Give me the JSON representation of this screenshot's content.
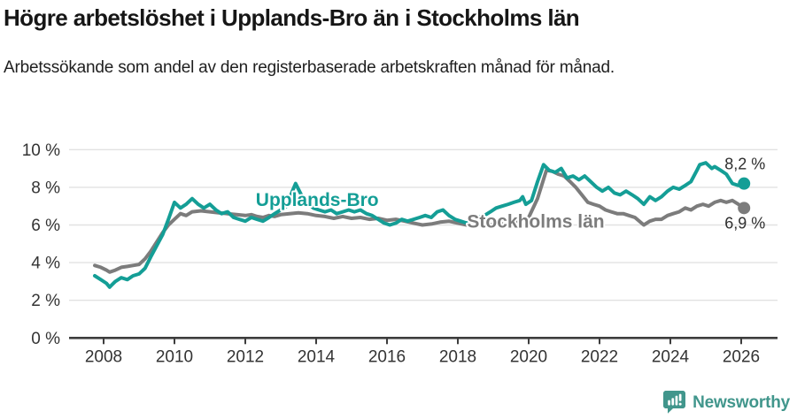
{
  "header": {
    "title": "Högre arbetslöshet i Upplands-Bro än i Stockholms län",
    "subtitle": "Arbetssökande som andel av den registerbaserade arbetskraften månad för månad."
  },
  "footer": {
    "brand": "Newsworthy",
    "brand_color": "#41968c"
  },
  "chart_data": {
    "type": "line",
    "unit": "%",
    "grid": true,
    "legend_position": "inline-labels",
    "xlim": [
      2007.1,
      2027.0
    ],
    "ylim": [
      0,
      10
    ],
    "grid_color": "#e2e2e2",
    "axis_color": "#3d3d3d",
    "tick_label_color": "#333333",
    "end_label_color": "#2e2e2e",
    "y_ticks": [
      {
        "value": 0,
        "label": "0 %"
      },
      {
        "value": 2,
        "label": "2 %"
      },
      {
        "value": 4,
        "label": "4 %"
      },
      {
        "value": 6,
        "label": "6 %"
      },
      {
        "value": 8,
        "label": "8 %"
      },
      {
        "value": 10,
        "label": "10 %"
      }
    ],
    "x_ticks": [
      {
        "value": 2008,
        "label": "2008"
      },
      {
        "value": 2010,
        "label": "2010"
      },
      {
        "value": 2012,
        "label": "2012"
      },
      {
        "value": 2014,
        "label": "2014"
      },
      {
        "value": 2016,
        "label": "2016"
      },
      {
        "value": 2018,
        "label": "2018"
      },
      {
        "value": 2020,
        "label": "2020"
      },
      {
        "value": 2022,
        "label": "2022"
      },
      {
        "value": 2024,
        "label": "2024"
      },
      {
        "value": 2026,
        "label": "2026"
      }
    ],
    "series": [
      {
        "name": "Upplands-Bro",
        "color": "#149e96",
        "end_label": "8,2 %",
        "end_value": 8.2,
        "label_anchor": {
          "x": 2014.03,
          "y": 7.0
        },
        "points": [
          [
            2007.75,
            3.3
          ],
          [
            2007.92,
            3.1
          ],
          [
            2008.08,
            2.9
          ],
          [
            2008.17,
            2.7
          ],
          [
            2008.33,
            3.0
          ],
          [
            2008.5,
            3.2
          ],
          [
            2008.67,
            3.1
          ],
          [
            2008.83,
            3.3
          ],
          [
            2009.0,
            3.4
          ],
          [
            2009.17,
            3.7
          ],
          [
            2009.33,
            4.3
          ],
          [
            2009.5,
            4.9
          ],
          [
            2009.67,
            5.5
          ],
          [
            2009.83,
            6.3
          ],
          [
            2010.0,
            7.2
          ],
          [
            2010.17,
            6.9
          ],
          [
            2010.33,
            7.1
          ],
          [
            2010.5,
            7.4
          ],
          [
            2010.67,
            7.1
          ],
          [
            2010.83,
            6.9
          ],
          [
            2011.0,
            7.1
          ],
          [
            2011.17,
            6.8
          ],
          [
            2011.33,
            6.6
          ],
          [
            2011.5,
            6.7
          ],
          [
            2011.67,
            6.4
          ],
          [
            2011.83,
            6.3
          ],
          [
            2012.0,
            6.2
          ],
          [
            2012.17,
            6.4
          ],
          [
            2012.33,
            6.3
          ],
          [
            2012.5,
            6.2
          ],
          [
            2012.67,
            6.4
          ],
          [
            2012.83,
            6.6
          ],
          [
            2013.0,
            6.8
          ],
          [
            2013.17,
            7.0
          ],
          [
            2013.33,
            7.8
          ],
          [
            2013.42,
            8.2
          ],
          [
            2013.58,
            7.6
          ],
          [
            2013.75,
            7.2
          ],
          [
            2013.92,
            6.9
          ],
          [
            2014.08,
            6.8
          ],
          [
            2014.25,
            6.7
          ],
          [
            2014.42,
            6.8
          ],
          [
            2014.58,
            6.6
          ],
          [
            2014.75,
            6.7
          ],
          [
            2014.92,
            6.8
          ],
          [
            2015.08,
            6.7
          ],
          [
            2015.25,
            6.8
          ],
          [
            2015.42,
            6.6
          ],
          [
            2015.58,
            6.5
          ],
          [
            2015.75,
            6.3
          ],
          [
            2015.92,
            6.1
          ],
          [
            2016.08,
            6.0
          ],
          [
            2016.25,
            6.1
          ],
          [
            2016.42,
            6.3
          ],
          [
            2016.58,
            6.2
          ],
          [
            2016.75,
            6.3
          ],
          [
            2016.92,
            6.4
          ],
          [
            2017.08,
            6.5
          ],
          [
            2017.25,
            6.4
          ],
          [
            2017.42,
            6.7
          ],
          [
            2017.58,
            6.8
          ],
          [
            2017.75,
            6.5
          ],
          [
            2017.92,
            6.3
          ],
          [
            2018.08,
            6.2
          ],
          [
            2018.25,
            6.1
          ],
          [
            2018.42,
            6.2
          ],
          [
            2018.58,
            6.4
          ],
          [
            2018.75,
            6.5
          ],
          [
            2018.92,
            6.7
          ],
          [
            2019.08,
            6.9
          ],
          [
            2019.25,
            7.0
          ],
          [
            2019.42,
            7.1
          ],
          [
            2019.58,
            7.2
          ],
          [
            2019.75,
            7.3
          ],
          [
            2019.83,
            7.5
          ],
          [
            2019.92,
            7.1
          ],
          [
            2020.08,
            7.3
          ],
          [
            2020.25,
            8.3
          ],
          [
            2020.42,
            9.2
          ],
          [
            2020.58,
            8.9
          ],
          [
            2020.75,
            8.8
          ],
          [
            2020.92,
            9.0
          ],
          [
            2021.08,
            8.5
          ],
          [
            2021.25,
            8.6
          ],
          [
            2021.42,
            8.4
          ],
          [
            2021.58,
            8.6
          ],
          [
            2021.75,
            8.3
          ],
          [
            2021.92,
            8.0
          ],
          [
            2022.08,
            7.8
          ],
          [
            2022.25,
            8.0
          ],
          [
            2022.42,
            7.7
          ],
          [
            2022.58,
            7.6
          ],
          [
            2022.75,
            7.8
          ],
          [
            2022.92,
            7.6
          ],
          [
            2023.08,
            7.4
          ],
          [
            2023.25,
            7.1
          ],
          [
            2023.42,
            7.5
          ],
          [
            2023.58,
            7.3
          ],
          [
            2023.75,
            7.5
          ],
          [
            2023.92,
            7.8
          ],
          [
            2024.08,
            8.0
          ],
          [
            2024.25,
            7.9
          ],
          [
            2024.42,
            8.1
          ],
          [
            2024.58,
            8.3
          ],
          [
            2024.75,
            8.9
          ],
          [
            2024.83,
            9.2
          ],
          [
            2025.0,
            9.3
          ],
          [
            2025.17,
            9.0
          ],
          [
            2025.25,
            9.1
          ],
          [
            2025.42,
            8.9
          ],
          [
            2025.58,
            8.7
          ],
          [
            2025.75,
            8.2
          ],
          [
            2025.92,
            8.1
          ],
          [
            2026.08,
            8.2
          ]
        ]
      },
      {
        "name": "Stockholms län",
        "color": "#7c7c7c",
        "end_label": "6,9 %",
        "end_value": 6.9,
        "label_anchor": {
          "x": 2020.2,
          "y": 5.85
        },
        "points": [
          [
            2007.75,
            3.85
          ],
          [
            2007.92,
            3.75
          ],
          [
            2008.08,
            3.6
          ],
          [
            2008.17,
            3.5
          ],
          [
            2008.33,
            3.6
          ],
          [
            2008.5,
            3.75
          ],
          [
            2008.67,
            3.8
          ],
          [
            2008.83,
            3.85
          ],
          [
            2009.0,
            3.9
          ],
          [
            2009.17,
            4.2
          ],
          [
            2009.33,
            4.6
          ],
          [
            2009.5,
            5.1
          ],
          [
            2009.67,
            5.6
          ],
          [
            2009.83,
            6.0
          ],
          [
            2010.0,
            6.3
          ],
          [
            2010.17,
            6.6
          ],
          [
            2010.33,
            6.5
          ],
          [
            2010.5,
            6.7
          ],
          [
            2010.75,
            6.75
          ],
          [
            2011.0,
            6.7
          ],
          [
            2011.25,
            6.65
          ],
          [
            2011.5,
            6.6
          ],
          [
            2011.75,
            6.55
          ],
          [
            2012.0,
            6.5
          ],
          [
            2012.17,
            6.55
          ],
          [
            2012.33,
            6.45
          ],
          [
            2012.5,
            6.4
          ],
          [
            2012.67,
            6.5
          ],
          [
            2012.83,
            6.45
          ],
          [
            2013.0,
            6.55
          ],
          [
            2013.25,
            6.6
          ],
          [
            2013.5,
            6.65
          ],
          [
            2013.75,
            6.6
          ],
          [
            2014.0,
            6.5
          ],
          [
            2014.25,
            6.45
          ],
          [
            2014.5,
            6.35
          ],
          [
            2014.75,
            6.45
          ],
          [
            2015.0,
            6.35
          ],
          [
            2015.25,
            6.4
          ],
          [
            2015.5,
            6.3
          ],
          [
            2015.75,
            6.35
          ],
          [
            2016.0,
            6.25
          ],
          [
            2016.25,
            6.3
          ],
          [
            2016.5,
            6.2
          ],
          [
            2016.75,
            6.1
          ],
          [
            2017.0,
            6.0
          ],
          [
            2017.25,
            6.05
          ],
          [
            2017.5,
            6.15
          ],
          [
            2017.75,
            6.2
          ],
          [
            2018.0,
            6.1
          ],
          [
            2018.25,
            6.0
          ],
          [
            2018.5,
            6.0
          ],
          [
            2018.75,
            6.05
          ],
          [
            2019.0,
            6.0
          ],
          [
            2019.25,
            6.05
          ],
          [
            2019.5,
            6.1
          ],
          [
            2019.75,
            6.2
          ],
          [
            2020.0,
            6.4
          ],
          [
            2020.25,
            7.4
          ],
          [
            2020.5,
            8.9
          ],
          [
            2020.67,
            8.85
          ],
          [
            2020.83,
            8.7
          ],
          [
            2021.0,
            8.6
          ],
          [
            2021.17,
            8.3
          ],
          [
            2021.33,
            8.0
          ],
          [
            2021.5,
            7.6
          ],
          [
            2021.67,
            7.2
          ],
          [
            2021.83,
            7.1
          ],
          [
            2022.0,
            7.0
          ],
          [
            2022.17,
            6.8
          ],
          [
            2022.33,
            6.7
          ],
          [
            2022.5,
            6.6
          ],
          [
            2022.67,
            6.6
          ],
          [
            2022.83,
            6.5
          ],
          [
            2023.0,
            6.4
          ],
          [
            2023.25,
            6.0
          ],
          [
            2023.42,
            6.2
          ],
          [
            2023.58,
            6.3
          ],
          [
            2023.75,
            6.3
          ],
          [
            2023.92,
            6.5
          ],
          [
            2024.08,
            6.6
          ],
          [
            2024.25,
            6.7
          ],
          [
            2024.42,
            6.9
          ],
          [
            2024.58,
            6.8
          ],
          [
            2024.75,
            7.0
          ],
          [
            2024.92,
            7.1
          ],
          [
            2025.08,
            7.0
          ],
          [
            2025.25,
            7.2
          ],
          [
            2025.42,
            7.3
          ],
          [
            2025.58,
            7.2
          ],
          [
            2025.75,
            7.3
          ],
          [
            2025.92,
            7.1
          ],
          [
            2026.08,
            6.9
          ]
        ]
      }
    ]
  }
}
